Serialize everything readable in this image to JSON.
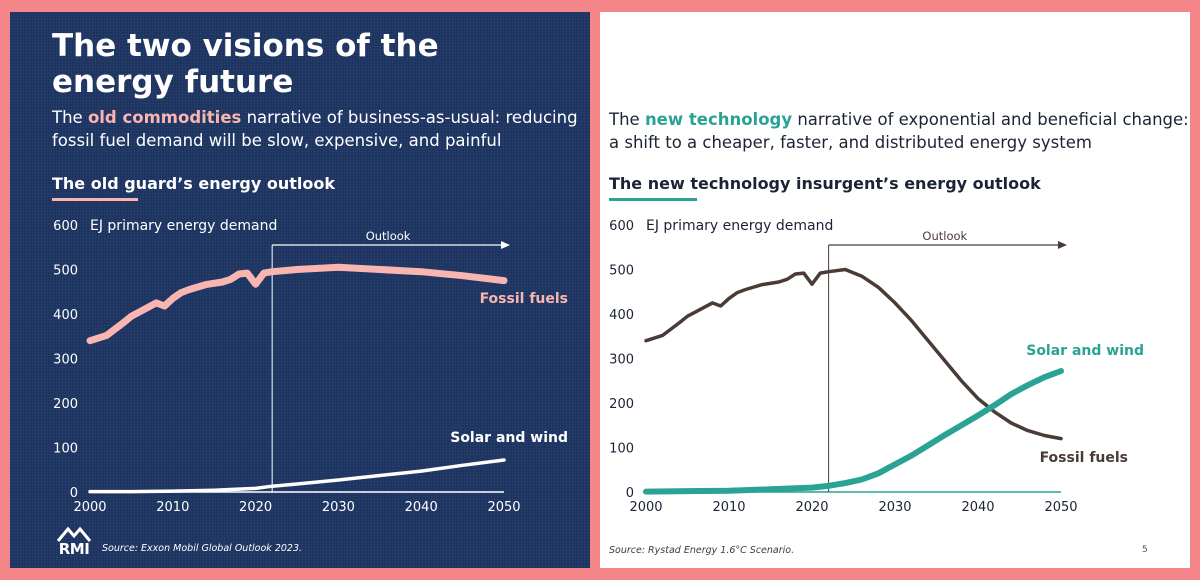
{
  "left": {
    "title": "The two visions of the energy future",
    "subtitle_pre": "The ",
    "subtitle_highlight": "old commodities",
    "subtitle_post": " narrative of business-as-usual: reducing fossil fuel demand will be slow, expensive, and painful",
    "outlook_title": "The old guard’s energy outlook",
    "source": "Source: Exxon Mobil Global Outlook 2023.",
    "logo_text": "RMI",
    "colors": {
      "background": "#1d3461",
      "highlight": "#f9b6b0",
      "fossil": "#f9b6b0",
      "solar": "#ffffff"
    }
  },
  "right": {
    "subtitle_pre": "The ",
    "subtitle_highlight": "new technology",
    "subtitle_post": " narrative of exponential and beneficial change: a shift to a cheaper, faster, and distributed energy system",
    "outlook_title": "The new technology insurgent’s energy outlook",
    "source": "Source: Rystad Energy 1.6°C Scenario.",
    "page_number": "5",
    "colors": {
      "background": "#ffffff",
      "highlight": "#2aa394",
      "fossil": "#4a3b37",
      "solar": "#2aa394"
    }
  },
  "chart_data": [
    {
      "type": "line",
      "ylabel": "EJ primary energy demand",
      "xlim": [
        2000,
        2050
      ],
      "ylim": [
        0,
        600
      ],
      "x_ticks": [
        "2000",
        "2010",
        "2020",
        "2030",
        "2040",
        "2050"
      ],
      "y_ticks": [
        "0",
        "100",
        "200",
        "300",
        "400",
        "500",
        "600"
      ],
      "outlook_start": 2022,
      "outlook_label": "Outlook",
      "series": [
        {
          "name": "Fossil fuels",
          "x": [
            2000,
            2002,
            2004,
            2005,
            2006,
            2008,
            2009,
            2010,
            2011,
            2012,
            2014,
            2016,
            2017,
            2018,
            2019,
            2020,
            2021,
            2022,
            2025,
            2030,
            2035,
            2040,
            2045,
            2050
          ],
          "y": [
            340,
            352,
            380,
            395,
            405,
            425,
            418,
            435,
            448,
            455,
            466,
            472,
            478,
            490,
            492,
            467,
            492,
            495,
            500,
            505,
            500,
            495,
            486,
            475
          ]
        },
        {
          "name": "Solar and wind",
          "x": [
            2000,
            2005,
            2010,
            2015,
            2020,
            2022,
            2025,
            2030,
            2035,
            2040,
            2045,
            2050
          ],
          "y": [
            1,
            1,
            2,
            4,
            8,
            13,
            18,
            27,
            37,
            47,
            60,
            72
          ]
        }
      ]
    },
    {
      "type": "line",
      "ylabel": "EJ primary energy demand",
      "xlim": [
        2000,
        2050
      ],
      "ylim": [
        0,
        600
      ],
      "x_ticks": [
        "2000",
        "2010",
        "2020",
        "2030",
        "2040",
        "2050"
      ],
      "y_ticks": [
        "0",
        "100",
        "200",
        "300",
        "400",
        "500",
        "600"
      ],
      "outlook_start": 2022,
      "outlook_label": "Outlook",
      "series": [
        {
          "name": "Fossil fuels",
          "x": [
            2000,
            2002,
            2004,
            2005,
            2006,
            2008,
            2009,
            2010,
            2011,
            2012,
            2014,
            2016,
            2017,
            2018,
            2019,
            2020,
            2021,
            2022,
            2024,
            2026,
            2028,
            2030,
            2032,
            2034,
            2036,
            2038,
            2040,
            2042,
            2044,
            2046,
            2048,
            2050
          ],
          "y": [
            340,
            352,
            380,
            395,
            405,
            425,
            418,
            435,
            448,
            455,
            466,
            472,
            478,
            490,
            492,
            467,
            492,
            495,
            500,
            485,
            460,
            425,
            385,
            340,
            295,
            250,
            210,
            180,
            155,
            138,
            127,
            120
          ]
        },
        {
          "name": "Solar and wind",
          "x": [
            2000,
            2005,
            2010,
            2015,
            2020,
            2022,
            2024,
            2026,
            2028,
            2030,
            2032,
            2034,
            2036,
            2038,
            2040,
            2042,
            2044,
            2046,
            2048,
            2050
          ],
          "y": [
            1,
            2,
            3,
            6,
            10,
            14,
            20,
            28,
            42,
            62,
            82,
            105,
            128,
            150,
            172,
            195,
            220,
            240,
            258,
            272
          ]
        }
      ]
    }
  ]
}
